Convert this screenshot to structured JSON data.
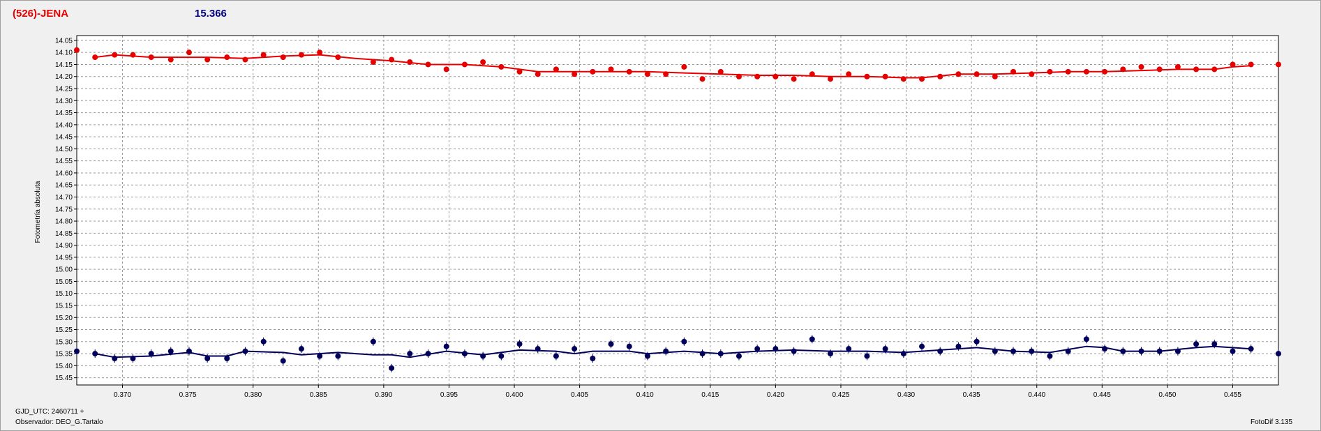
{
  "header": {
    "object_name": "(526)-JENA",
    "magnitude": "15.366"
  },
  "colors": {
    "object": "#e60000",
    "comparison": "#00005a",
    "magnitude_label": "#000080",
    "grid": "#9a9a9a"
  },
  "footer": {
    "gjd_label": "GJD_UTC: 2460711 +",
    "observer": "Observador: DEO_G.Tartalo",
    "software": "FotoDif 3.135"
  },
  "chart_data": {
    "type": "scatter",
    "ylabel": "Fotometría absoluta",
    "xlabel": "",
    "xlim": [
      0.3665,
      0.4585
    ],
    "ylim": [
      15.48,
      14.03
    ],
    "y_inverted": true,
    "grid": true,
    "x_ticks": [
      "0.370",
      "0.375",
      "0.380",
      "0.385",
      "0.390",
      "0.395",
      "0.400",
      "0.405",
      "0.410",
      "0.415",
      "0.420",
      "0.425",
      "0.430",
      "0.435",
      "0.440",
      "0.445",
      "0.450",
      "0.455"
    ],
    "y_ticks": [
      "14.05",
      "14.10",
      "14.15",
      "14.20",
      "14.25",
      "14.30",
      "14.35",
      "14.40",
      "14.45",
      "14.50",
      "14.55",
      "14.60",
      "14.65",
      "14.70",
      "14.75",
      "14.80",
      "14.85",
      "14.90",
      "14.95",
      "15.00",
      "15.05",
      "15.10",
      "15.15",
      "15.20",
      "15.25",
      "15.30",
      "15.35",
      "15.40",
      "15.45"
    ],
    "series": [
      {
        "role": "object",
        "color": "#e60000",
        "points": [
          [
            0.3665,
            14.09
          ],
          [
            0.3679,
            14.12
          ],
          [
            0.3694,
            14.11
          ],
          [
            0.3708,
            14.11
          ],
          [
            0.3722,
            14.12
          ],
          [
            0.3737,
            14.13
          ],
          [
            0.3751,
            14.1
          ],
          [
            0.3765,
            14.13
          ],
          [
            0.378,
            14.12
          ],
          [
            0.3794,
            14.13
          ],
          [
            0.3808,
            14.11
          ],
          [
            0.3823,
            14.12
          ],
          [
            0.3837,
            14.11
          ],
          [
            0.3851,
            14.1
          ],
          [
            0.3865,
            14.12
          ],
          [
            0.3892,
            14.14
          ],
          [
            0.3906,
            14.13
          ],
          [
            0.392,
            14.14
          ],
          [
            0.3934,
            14.15
          ],
          [
            0.3948,
            14.17
          ],
          [
            0.3962,
            14.15
          ],
          [
            0.3976,
            14.14
          ],
          [
            0.399,
            14.16
          ],
          [
            0.4004,
            14.18
          ],
          [
            0.4018,
            14.19
          ],
          [
            0.4032,
            14.17
          ],
          [
            0.4046,
            14.19
          ],
          [
            0.406,
            14.18
          ],
          [
            0.4074,
            14.17
          ],
          [
            0.4088,
            14.18
          ],
          [
            0.4102,
            14.19
          ],
          [
            0.4116,
            14.19
          ],
          [
            0.413,
            14.16
          ],
          [
            0.4144,
            14.21
          ],
          [
            0.4158,
            14.18
          ],
          [
            0.4172,
            14.2
          ],
          [
            0.4186,
            14.2
          ],
          [
            0.42,
            14.2
          ],
          [
            0.4214,
            14.21
          ],
          [
            0.4228,
            14.19
          ],
          [
            0.4242,
            14.21
          ],
          [
            0.4256,
            14.19
          ],
          [
            0.427,
            14.2
          ],
          [
            0.4284,
            14.2
          ],
          [
            0.4298,
            14.21
          ],
          [
            0.4312,
            14.21
          ],
          [
            0.4326,
            14.2
          ],
          [
            0.434,
            14.19
          ],
          [
            0.4354,
            14.19
          ],
          [
            0.4368,
            14.2
          ],
          [
            0.4382,
            14.18
          ],
          [
            0.4396,
            14.19
          ],
          [
            0.441,
            14.18
          ],
          [
            0.4424,
            14.18
          ],
          [
            0.4438,
            14.18
          ],
          [
            0.4452,
            14.18
          ],
          [
            0.4466,
            14.17
          ],
          [
            0.448,
            14.16
          ],
          [
            0.4494,
            14.17
          ],
          [
            0.4508,
            14.16
          ],
          [
            0.4522,
            14.17
          ],
          [
            0.4536,
            14.17
          ],
          [
            0.455,
            14.15
          ],
          [
            0.4564,
            14.15
          ],
          [
            0.4585,
            14.15
          ]
        ],
        "trend": [
          [
            0.3679,
            14.12
          ],
          [
            0.3694,
            14.11
          ],
          [
            0.3722,
            14.12
          ],
          [
            0.3765,
            14.12
          ],
          [
            0.3794,
            14.125
          ],
          [
            0.3823,
            14.115
          ],
          [
            0.3851,
            14.11
          ],
          [
            0.3878,
            14.125
          ],
          [
            0.3906,
            14.135
          ],
          [
            0.3934,
            14.15
          ],
          [
            0.3962,
            14.15
          ],
          [
            0.399,
            14.16
          ],
          [
            0.4018,
            14.18
          ],
          [
            0.4046,
            14.18
          ],
          [
            0.4074,
            14.18
          ],
          [
            0.4102,
            14.18
          ],
          [
            0.413,
            14.185
          ],
          [
            0.4158,
            14.19
          ],
          [
            0.4186,
            14.195
          ],
          [
            0.4214,
            14.195
          ],
          [
            0.4242,
            14.2
          ],
          [
            0.427,
            14.2
          ],
          [
            0.4298,
            14.205
          ],
          [
            0.4312,
            14.205
          ],
          [
            0.434,
            14.19
          ],
          [
            0.4368,
            14.19
          ],
          [
            0.4396,
            14.185
          ],
          [
            0.4424,
            14.18
          ],
          [
            0.4452,
            14.18
          ],
          [
            0.448,
            14.175
          ],
          [
            0.4508,
            14.17
          ],
          [
            0.4536,
            14.17
          ],
          [
            0.455,
            14.16
          ],
          [
            0.4564,
            14.155
          ]
        ]
      },
      {
        "role": "comparison",
        "color": "#00005a",
        "points": [
          [
            0.3665,
            15.34
          ],
          [
            0.3679,
            15.35
          ],
          [
            0.3694,
            15.37
          ],
          [
            0.3708,
            15.37
          ],
          [
            0.3722,
            15.35
          ],
          [
            0.3737,
            15.34
          ],
          [
            0.3751,
            15.34
          ],
          [
            0.3765,
            15.37
          ],
          [
            0.378,
            15.37
          ],
          [
            0.3794,
            15.34
          ],
          [
            0.3808,
            15.3
          ],
          [
            0.3823,
            15.38
          ],
          [
            0.3837,
            15.33
          ],
          [
            0.3851,
            15.36
          ],
          [
            0.3865,
            15.36
          ],
          [
            0.3892,
            15.3
          ],
          [
            0.3906,
            15.41
          ],
          [
            0.392,
            15.35
          ],
          [
            0.3934,
            15.35
          ],
          [
            0.3948,
            15.32
          ],
          [
            0.3962,
            15.35
          ],
          [
            0.3976,
            15.36
          ],
          [
            0.399,
            15.36
          ],
          [
            0.4004,
            15.31
          ],
          [
            0.4018,
            15.33
          ],
          [
            0.4032,
            15.36
          ],
          [
            0.4046,
            15.33
          ],
          [
            0.406,
            15.37
          ],
          [
            0.4074,
            15.31
          ],
          [
            0.4088,
            15.32
          ],
          [
            0.4102,
            15.36
          ],
          [
            0.4116,
            15.34
          ],
          [
            0.413,
            15.3
          ],
          [
            0.4144,
            15.35
          ],
          [
            0.4158,
            15.35
          ],
          [
            0.4172,
            15.36
          ],
          [
            0.4186,
            15.33
          ],
          [
            0.42,
            15.33
          ],
          [
            0.4214,
            15.34
          ],
          [
            0.4228,
            15.29
          ],
          [
            0.4242,
            15.35
          ],
          [
            0.4256,
            15.33
          ],
          [
            0.427,
            15.36
          ],
          [
            0.4284,
            15.33
          ],
          [
            0.4298,
            15.35
          ],
          [
            0.4312,
            15.32
          ],
          [
            0.4326,
            15.34
          ],
          [
            0.434,
            15.32
          ],
          [
            0.4354,
            15.3
          ],
          [
            0.4368,
            15.34
          ],
          [
            0.4382,
            15.34
          ],
          [
            0.4396,
            15.34
          ],
          [
            0.441,
            15.36
          ],
          [
            0.4424,
            15.34
          ],
          [
            0.4438,
            15.29
          ],
          [
            0.4452,
            15.33
          ],
          [
            0.4466,
            15.34
          ],
          [
            0.448,
            15.34
          ],
          [
            0.4494,
            15.34
          ],
          [
            0.4508,
            15.34
          ],
          [
            0.4522,
            15.31
          ],
          [
            0.4536,
            15.31
          ],
          [
            0.455,
            15.34
          ],
          [
            0.4564,
            15.33
          ],
          [
            0.4585,
            15.35
          ]
        ],
        "trend": [
          [
            0.3679,
            15.35
          ],
          [
            0.3694,
            15.365
          ],
          [
            0.3722,
            15.36
          ],
          [
            0.3751,
            15.345
          ],
          [
            0.3765,
            15.36
          ],
          [
            0.378,
            15.36
          ],
          [
            0.3794,
            15.34
          ],
          [
            0.3823,
            15.345
          ],
          [
            0.3837,
            15.355
          ],
          [
            0.3865,
            15.345
          ],
          [
            0.3892,
            15.355
          ],
          [
            0.3906,
            15.355
          ],
          [
            0.392,
            15.365
          ],
          [
            0.3948,
            15.34
          ],
          [
            0.3976,
            15.355
          ],
          [
            0.4004,
            15.335
          ],
          [
            0.4032,
            15.34
          ],
          [
            0.4046,
            15.35
          ],
          [
            0.406,
            15.34
          ],
          [
            0.4088,
            15.34
          ],
          [
            0.4102,
            15.35
          ],
          [
            0.413,
            15.34
          ],
          [
            0.4158,
            15.35
          ],
          [
            0.4186,
            15.34
          ],
          [
            0.4214,
            15.335
          ],
          [
            0.4242,
            15.34
          ],
          [
            0.427,
            15.34
          ],
          [
            0.4298,
            15.345
          ],
          [
            0.4326,
            15.335
          ],
          [
            0.4354,
            15.325
          ],
          [
            0.4382,
            15.34
          ],
          [
            0.441,
            15.345
          ],
          [
            0.4438,
            15.32
          ],
          [
            0.4452,
            15.325
          ],
          [
            0.4466,
            15.34
          ],
          [
            0.4494,
            15.34
          ],
          [
            0.4522,
            15.325
          ],
          [
            0.4536,
            15.32
          ],
          [
            0.4564,
            15.33
          ]
        ]
      }
    ]
  }
}
